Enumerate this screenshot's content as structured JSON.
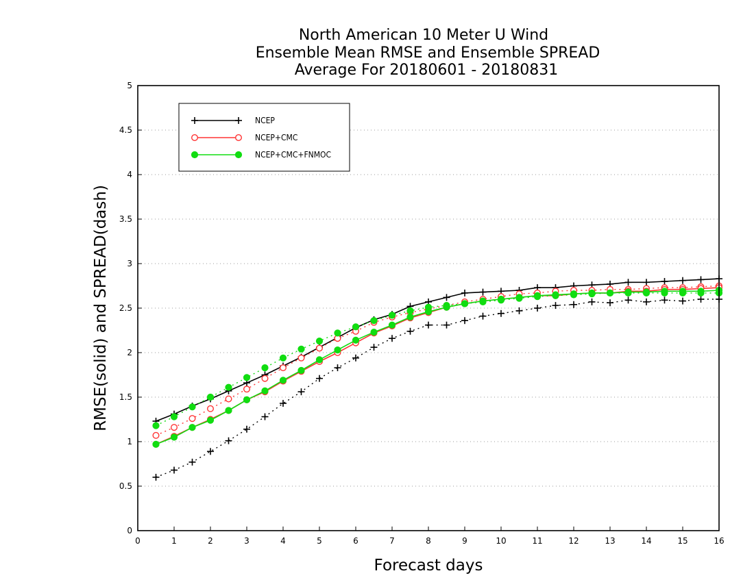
{
  "chart_data": {
    "type": "line",
    "title_lines": [
      "North American 10 Meter U Wind",
      "Ensemble Mean RMSE and Ensemble SPREAD",
      "Average For 20180601 - 20180831"
    ],
    "xlabel": "Forecast days",
    "ylabel": "RMSE(solid) and SPREAD(dash)",
    "xlim": [
      0,
      16
    ],
    "ylim": [
      0,
      5
    ],
    "xticks": [
      "0",
      "1",
      "2",
      "3",
      "4",
      "5",
      "6",
      "7",
      "8",
      "9",
      "10",
      "11",
      "12",
      "13",
      "14",
      "15",
      "16"
    ],
    "yticks": [
      "0",
      "0.5",
      "1",
      "1.5",
      "2",
      "2.5",
      "3",
      "3.5",
      "4",
      "4.5",
      "5"
    ],
    "grid": "horizontal dotted",
    "legend_position": "top-left",
    "x": [
      0.5,
      1,
      1.5,
      2,
      2.5,
      3,
      3.5,
      4,
      4.5,
      5,
      5.5,
      6,
      6.5,
      7,
      7.5,
      8,
      8.5,
      9,
      9.5,
      10,
      10.5,
      11,
      11.5,
      12,
      12.5,
      13,
      13.5,
      14,
      14.5,
      15,
      15.5,
      16
    ],
    "series": [
      {
        "name": "NCEP",
        "color": "#000000",
        "marker": "plus",
        "rmse": [
          1.23,
          1.31,
          1.4,
          1.48,
          1.57,
          1.66,
          1.75,
          1.85,
          1.95,
          2.06,
          2.17,
          2.28,
          2.37,
          2.43,
          2.52,
          2.57,
          2.62,
          2.67,
          2.68,
          2.69,
          2.7,
          2.73,
          2.73,
          2.75,
          2.76,
          2.77,
          2.79,
          2.79,
          2.8,
          2.81,
          2.82,
          2.83
        ],
        "spread": [
          0.6,
          0.68,
          0.77,
          0.89,
          1.01,
          1.14,
          1.28,
          1.43,
          1.56,
          1.71,
          1.83,
          1.94,
          2.06,
          2.16,
          2.24,
          2.31,
          2.31,
          2.36,
          2.41,
          2.44,
          2.47,
          2.5,
          2.53,
          2.54,
          2.57,
          2.56,
          2.59,
          2.57,
          2.59,
          2.58,
          2.6,
          2.6
        ]
      },
      {
        "name": "NCEP+CMC",
        "color": "#ff3333",
        "marker": "open-circle",
        "rmse": [
          0.97,
          1.06,
          1.16,
          1.25,
          1.35,
          1.47,
          1.56,
          1.68,
          1.79,
          1.9,
          2.0,
          2.11,
          2.22,
          2.3,
          2.39,
          2.45,
          2.51,
          2.55,
          2.58,
          2.6,
          2.62,
          2.64,
          2.64,
          2.66,
          2.67,
          2.67,
          2.69,
          2.69,
          2.71,
          2.71,
          2.72,
          2.73
        ],
        "spread": [
          1.07,
          1.16,
          1.26,
          1.37,
          1.48,
          1.59,
          1.71,
          1.83,
          1.94,
          2.05,
          2.16,
          2.24,
          2.34,
          2.4,
          2.45,
          2.49,
          2.53,
          2.57,
          2.6,
          2.63,
          2.66,
          2.67,
          2.69,
          2.7,
          2.7,
          2.71,
          2.71,
          2.72,
          2.73,
          2.73,
          2.74,
          2.75
        ]
      },
      {
        "name": "NCEP+CMC+FNMOC",
        "color": "#11dd11",
        "marker": "filled-circle",
        "rmse": [
          0.97,
          1.05,
          1.16,
          1.24,
          1.35,
          1.47,
          1.57,
          1.69,
          1.8,
          1.92,
          2.03,
          2.14,
          2.23,
          2.31,
          2.4,
          2.46,
          2.51,
          2.55,
          2.58,
          2.6,
          2.62,
          2.64,
          2.65,
          2.66,
          2.67,
          2.67,
          2.68,
          2.68,
          2.69,
          2.69,
          2.69,
          2.7
        ],
        "spread": [
          1.18,
          1.28,
          1.39,
          1.5,
          1.61,
          1.72,
          1.83,
          1.94,
          2.04,
          2.13,
          2.22,
          2.29,
          2.36,
          2.42,
          2.47,
          2.51,
          2.53,
          2.55,
          2.57,
          2.59,
          2.61,
          2.63,
          2.64,
          2.65,
          2.66,
          2.67,
          2.67,
          2.67,
          2.67,
          2.67,
          2.67,
          2.67
        ]
      }
    ]
  }
}
